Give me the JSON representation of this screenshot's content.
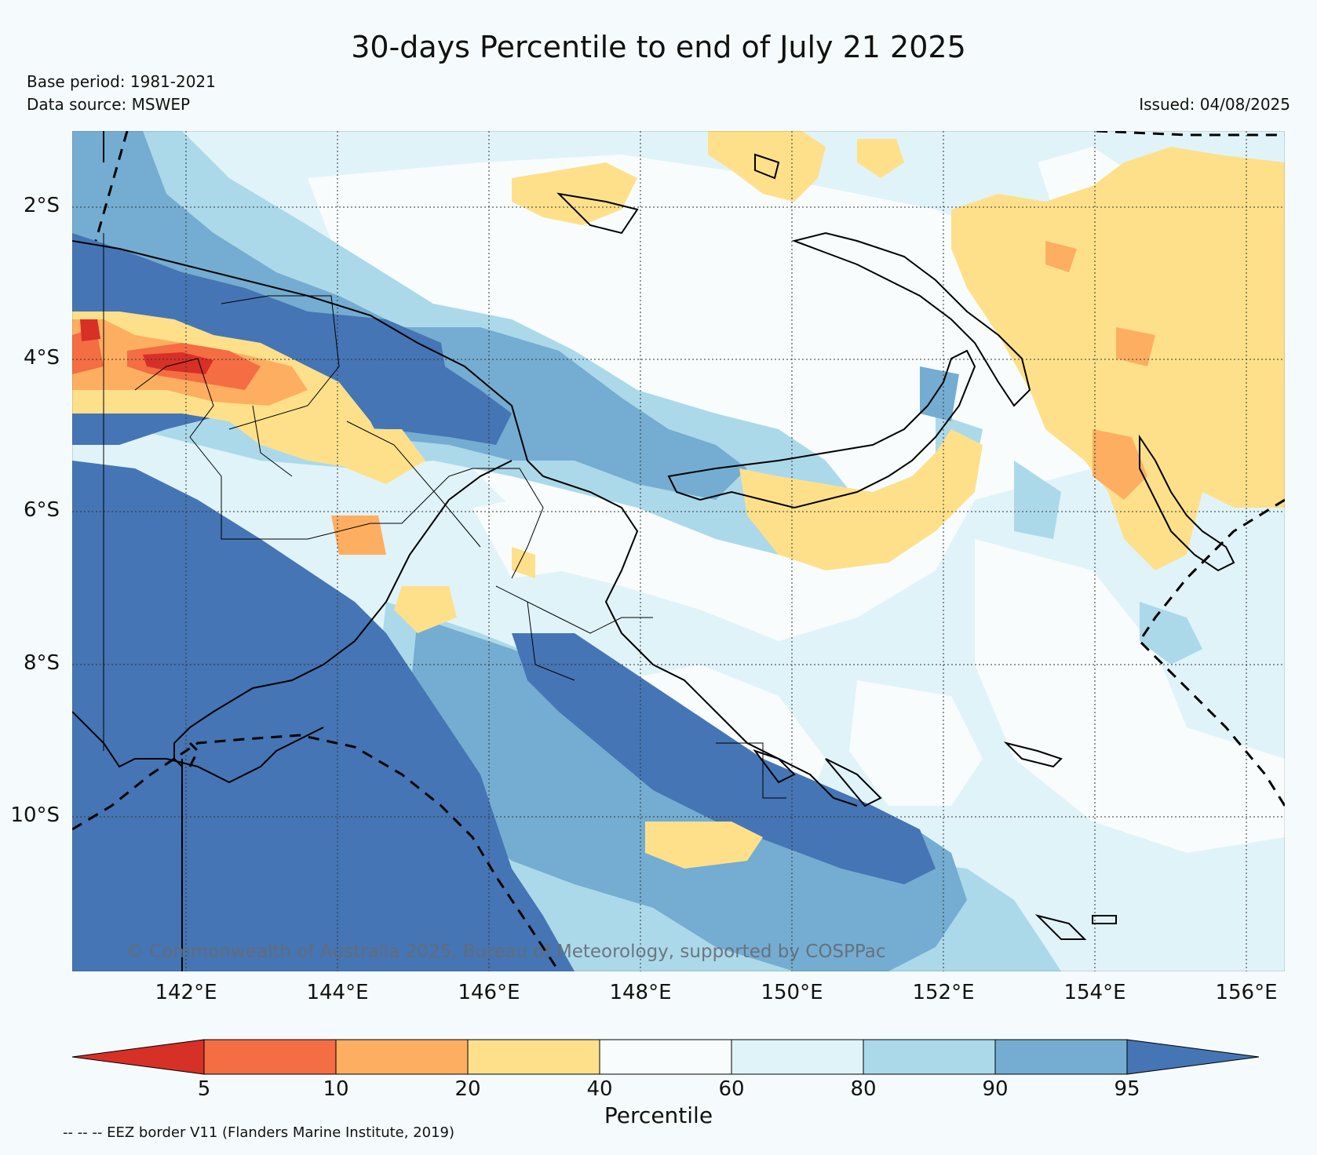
{
  "title": "30-days Percentile to end of July 21 2025",
  "base_period": "Base period: 1981-2021",
  "data_source": "Data source: MSWEP",
  "issued": "Issued: 04/08/2025",
  "copyright": "© Commonwealth of Australia 2025, Bureau of Meteorology, supported by COSPPac",
  "footer_note": "-- -- -- EEZ border V11 (Flanders Marine Institute, 2019)",
  "map": {
    "lat_labels": [
      "2°S",
      "4°S",
      "6°S",
      "8°S",
      "10°S"
    ],
    "lon_labels": [
      "142°E",
      "144°E",
      "146°E",
      "148°E",
      "150°E",
      "152°E",
      "154°E",
      "156°E"
    ],
    "lon_range": [
      140.5,
      156.5
    ],
    "lat_range": [
      -12.0,
      -1.0
    ],
    "gridlines": true
  },
  "colorbar": {
    "label": "Percentile",
    "ticks": [
      "5",
      "10",
      "20",
      "40",
      "60",
      "80",
      "90",
      "95"
    ],
    "colors": {
      "lt5": "#d73027",
      "5-10": "#f46d43",
      "10-20": "#fdae61",
      "20-40": "#fee08b",
      "40-60": "#f8fcfd",
      "60-80": "#e0f3f8",
      "80-90": "#abd9e9",
      "90-95": "#74add1",
      "gt95": "#4575b4"
    }
  }
}
